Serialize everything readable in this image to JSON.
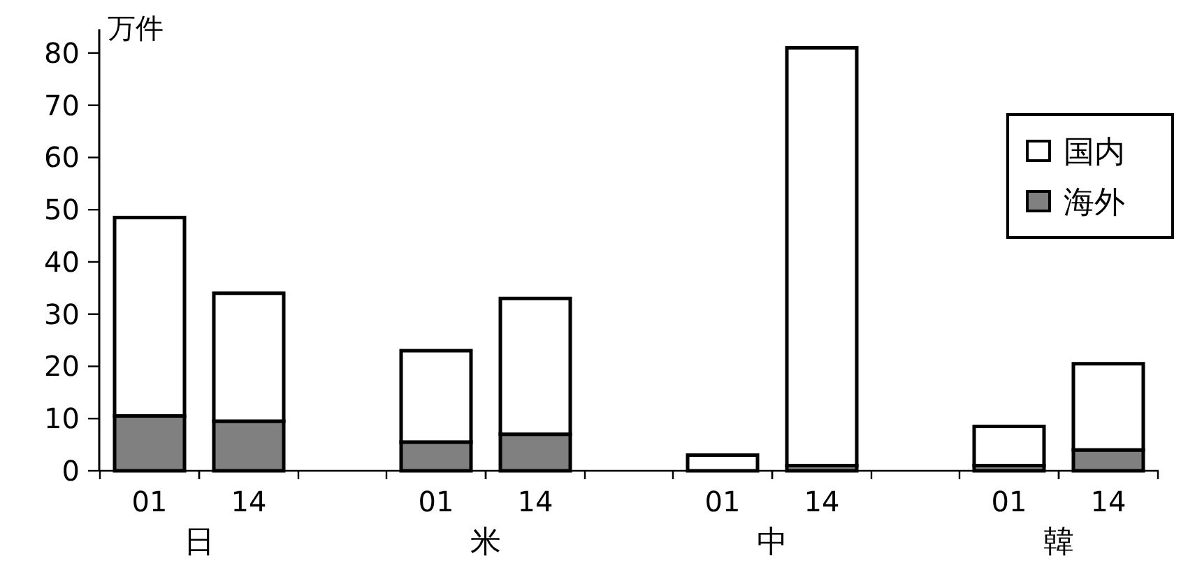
{
  "chart_data": {
    "type": "bar",
    "stacked": true,
    "ylabel": "万件",
    "categories": [
      "01",
      "14",
      "01",
      "14",
      "01",
      "14",
      "01",
      "14"
    ],
    "annotations": [
      "日",
      "米",
      "中",
      "韓"
    ],
    "series": [
      {
        "name": "海外",
        "color": "#808080",
        "values": [
          10.5,
          9.5,
          5.5,
          7,
          0,
          1,
          1,
          4
        ]
      },
      {
        "name": "国内",
        "color": "#ffffff",
        "values": [
          38,
          24.5,
          17.5,
          26,
          3,
          80,
          7.5,
          16.5
        ]
      }
    ],
    "ylim": [
      0,
      84
    ],
    "yticks": [
      0,
      10,
      20,
      30,
      40,
      50,
      60,
      70,
      80
    ],
    "legend": "right",
    "grid": false
  }
}
